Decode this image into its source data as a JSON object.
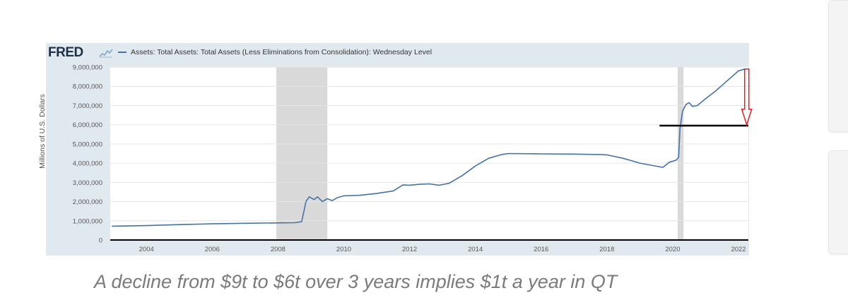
{
  "logo": {
    "text": "FRED"
  },
  "caption": "A decline from $9t to $6t over 3 years implies $1t a year in QT",
  "colors": {
    "series": "#4572a7",
    "recession": "#d9d9d9",
    "arrow": "#e02020",
    "annotation_line": "#000000"
  },
  "chart_data": {
    "type": "line",
    "title": "",
    "legend_position": "top-left",
    "ylabel": "Millions of U.S. Dollars",
    "xlabel": "",
    "xlim": [
      2002.9,
      2022.3
    ],
    "ylim": [
      0,
      9000000
    ],
    "x_ticks": [
      2004,
      2006,
      2008,
      2010,
      2012,
      2014,
      2016,
      2018,
      2020,
      2022
    ],
    "x_tick_labels": [
      "2004",
      "2006",
      "2008",
      "2010",
      "2012",
      "2014",
      "2016",
      "2018",
      "2020",
      "2022"
    ],
    "y_ticks": [
      0,
      1000000,
      2000000,
      3000000,
      4000000,
      5000000,
      6000000,
      7000000,
      8000000,
      9000000
    ],
    "y_tick_labels": [
      "0",
      "1,000,000",
      "2,000,000",
      "3,000,000",
      "4,000,000",
      "5,000,000",
      "6,000,000",
      "7,000,000",
      "8,000,000",
      "9,000,000"
    ],
    "grid": true,
    "recessions": [
      [
        2007.95,
        2009.5
      ],
      [
        2020.15,
        2020.33
      ]
    ],
    "series": [
      {
        "name": "Assets: Total Assets: Total Assets (Less Eliminations from Consolidation): Wednesday Level",
        "points": [
          [
            2002.95,
            720000
          ],
          [
            2004.0,
            750000
          ],
          [
            2005.0,
            800000
          ],
          [
            2006.0,
            840000
          ],
          [
            2007.0,
            870000
          ],
          [
            2007.9,
            890000
          ],
          [
            2008.5,
            900000
          ],
          [
            2008.72,
            950000
          ],
          [
            2008.85,
            2000000
          ],
          [
            2008.95,
            2250000
          ],
          [
            2009.1,
            2100000
          ],
          [
            2009.2,
            2250000
          ],
          [
            2009.35,
            2000000
          ],
          [
            2009.5,
            2150000
          ],
          [
            2009.65,
            2050000
          ],
          [
            2009.8,
            2200000
          ],
          [
            2010.0,
            2300000
          ],
          [
            2010.5,
            2330000
          ],
          [
            2011.0,
            2420000
          ],
          [
            2011.5,
            2550000
          ],
          [
            2011.8,
            2870000
          ],
          [
            2012.0,
            2850000
          ],
          [
            2012.3,
            2900000
          ],
          [
            2012.6,
            2920000
          ],
          [
            2012.9,
            2850000
          ],
          [
            2013.2,
            2950000
          ],
          [
            2013.6,
            3350000
          ],
          [
            2014.0,
            3850000
          ],
          [
            2014.4,
            4250000
          ],
          [
            2014.8,
            4450000
          ],
          [
            2015.0,
            4500000
          ],
          [
            2016.0,
            4480000
          ],
          [
            2017.0,
            4470000
          ],
          [
            2017.8,
            4450000
          ],
          [
            2018.0,
            4430000
          ],
          [
            2018.5,
            4250000
          ],
          [
            2019.0,
            4000000
          ],
          [
            2019.7,
            3780000
          ],
          [
            2019.9,
            4050000
          ],
          [
            2020.1,
            4150000
          ],
          [
            2020.18,
            4300000
          ],
          [
            2020.22,
            5800000
          ],
          [
            2020.3,
            6700000
          ],
          [
            2020.4,
            7050000
          ],
          [
            2020.5,
            7150000
          ],
          [
            2020.6,
            6950000
          ],
          [
            2020.75,
            7000000
          ],
          [
            2021.0,
            7350000
          ],
          [
            2021.3,
            7750000
          ],
          [
            2021.6,
            8200000
          ],
          [
            2021.9,
            8650000
          ],
          [
            2022.0,
            8800000
          ],
          [
            2022.2,
            8900000
          ]
        ]
      }
    ],
    "annotations": {
      "arrow": {
        "x": 2022.25,
        "from": 8900000,
        "to": 6000000
      },
      "hline": {
        "y": 5950000,
        "x_start": 2019.6,
        "x_end": 2022.3
      },
      "zero_line": {
        "y": 0
      }
    }
  }
}
